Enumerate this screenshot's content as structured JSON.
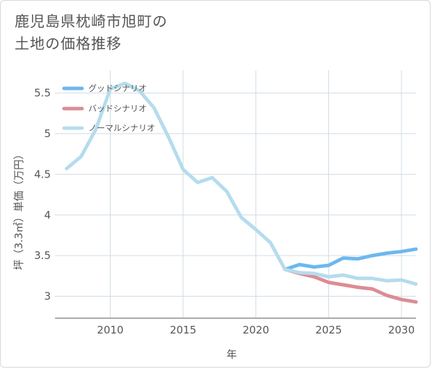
{
  "title": {
    "line1": "鹿児島県枕崎市旭町の",
    "line2": "土地の価格推移"
  },
  "chart_data": {
    "type": "line",
    "title": "鹿児島県枕崎市旭町の土地の価格推移",
    "xlabel": "年",
    "ylabel": "坪（3.3㎡）単価（万円）",
    "xlim": [
      2006.2,
      2031
    ],
    "ylim": [
      2.73,
      5.78
    ],
    "x_ticks": [
      2010,
      2015,
      2020,
      2025,
      2030
    ],
    "y_ticks": [
      3,
      3.5,
      4,
      4.5,
      5,
      5.5
    ],
    "grid": true,
    "legend_position": "top-left",
    "series": [
      {
        "name": "グッドシナリオ",
        "color": "#6cb8ee",
        "x": [
          2022,
          2023,
          2024,
          2025,
          2026,
          2027,
          2028,
          2029,
          2030,
          2031
        ],
        "values": [
          3.33,
          3.39,
          3.36,
          3.38,
          3.47,
          3.46,
          3.5,
          3.53,
          3.55,
          3.58
        ]
      },
      {
        "name": "バッドシナリオ",
        "color": "#dc8c94",
        "x": [
          2022,
          2023,
          2024,
          2025,
          2026,
          2027,
          2028,
          2029,
          2030,
          2031
        ],
        "values": [
          3.33,
          3.28,
          3.24,
          3.17,
          3.14,
          3.11,
          3.09,
          3.01,
          2.96,
          2.93
        ]
      },
      {
        "name": "ノーマルシナリオ",
        "color": "#b5dced",
        "x": [
          2007,
          2008,
          2009,
          2010,
          2011,
          2012,
          2013,
          2014,
          2015,
          2016,
          2017,
          2018,
          2019,
          2020,
          2021,
          2022,
          2023,
          2024,
          2025,
          2026,
          2027,
          2028,
          2029,
          2030,
          2031
        ],
        "values": [
          4.57,
          4.72,
          5.05,
          5.55,
          5.62,
          5.53,
          5.32,
          4.96,
          4.56,
          4.4,
          4.46,
          4.29,
          3.97,
          3.82,
          3.66,
          3.33,
          3.29,
          3.28,
          3.24,
          3.26,
          3.22,
          3.22,
          3.19,
          3.2,
          3.15
        ]
      }
    ]
  }
}
